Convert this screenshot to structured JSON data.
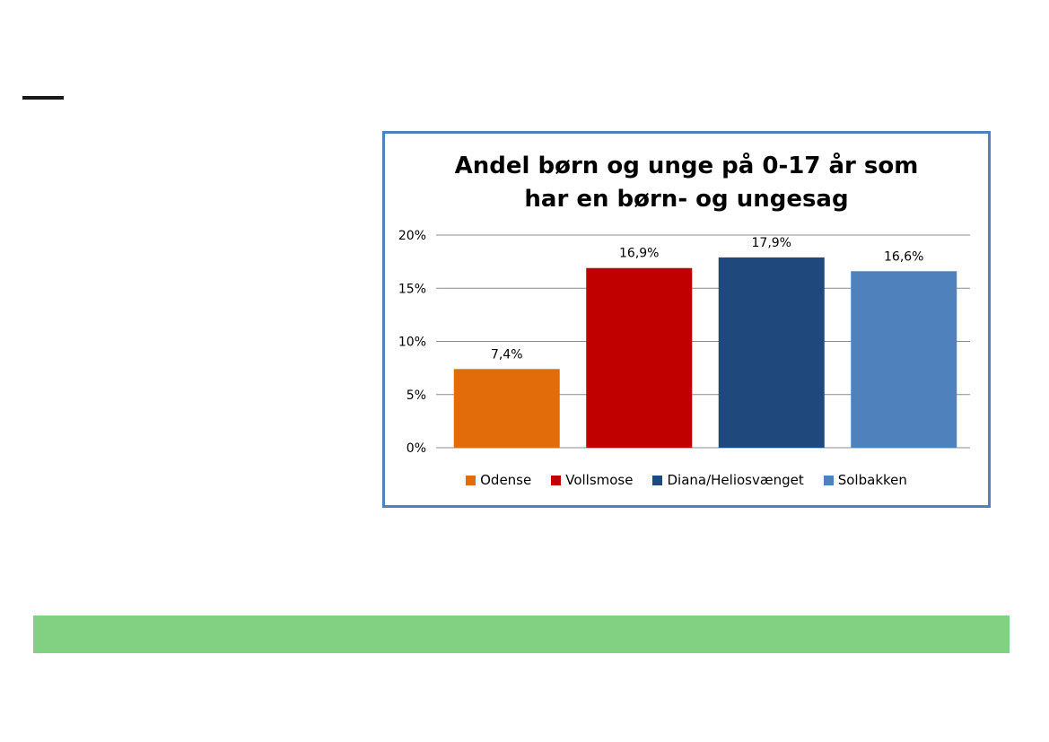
{
  "chart_data": {
    "type": "bar",
    "title_lines": [
      "Andel børn og unge på 0-17 år som",
      "har en børn- og ungesag"
    ],
    "categories": [
      "Odense",
      "Vollsmose",
      "Diana/Heliosvænget",
      "Solbakken"
    ],
    "values": [
      7.4,
      16.9,
      17.9,
      16.6
    ],
    "value_labels": [
      "7,4%",
      "16,9%",
      "17,9%",
      "16,6%"
    ],
    "colors": [
      "#e36c0a",
      "#c00000",
      "#1f497d",
      "#4f81bd"
    ],
    "ylim": [
      0,
      20
    ],
    "yticks": [
      0,
      5,
      10,
      15,
      20
    ],
    "ytick_labels": [
      "0%",
      "5%",
      "10%",
      "15%",
      "20%"
    ],
    "grid": true,
    "legend": {
      "position": "bottom",
      "entries": [
        "Odense",
        "Vollsmose",
        "Diana/Heliosvænget",
        "Solbakken"
      ]
    }
  },
  "colors": {
    "frame_border": "#4f81bd",
    "green_band": "#82d081",
    "gridline": "#8c8c8c"
  }
}
